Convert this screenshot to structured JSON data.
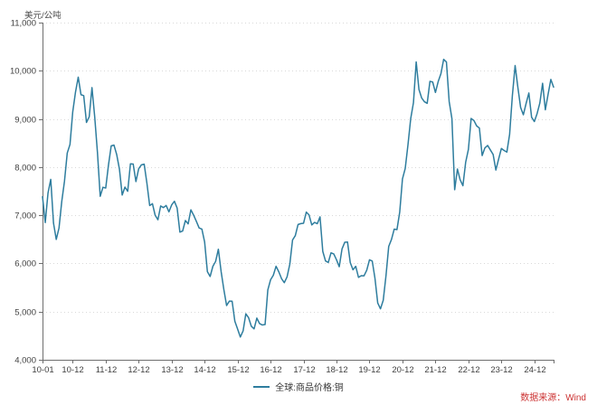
{
  "page": {
    "background": "#ffffff"
  },
  "header": {
    "unit_label": "美元/公吨"
  },
  "legend": {
    "series_label": "全球:商品价格:铜"
  },
  "footer": {
    "source_label": "数据来源：Wind"
  },
  "colors": {
    "line": "#2e7d9e",
    "grid": "#d9d9d9",
    "axis": "#6e6e6e",
    "tick_text": "#404040",
    "unit_text": "#4d4d4d",
    "legend_text": "#333333",
    "source_text": "#cc3333"
  },
  "chart_data": {
    "type": "line",
    "title": "",
    "ylabel": "美元/公吨",
    "xlabel": "",
    "ylim": [
      4000,
      11000
    ],
    "y_tick_step": 1000,
    "grid": "horizontal-dotted",
    "legend_position": "bottom-center",
    "x_start": "2010-01",
    "x_end": "2025-07",
    "x_frequency": "monthly",
    "y_ticks": [
      {
        "value": 4000,
        "label": "4,000"
      },
      {
        "value": 5000,
        "label": "5,000"
      },
      {
        "value": 6000,
        "label": "6,000"
      },
      {
        "value": 7000,
        "label": "7,000"
      },
      {
        "value": 8000,
        "label": "8,000"
      },
      {
        "value": 9000,
        "label": "9,000"
      },
      {
        "value": 10000,
        "label": "10,000"
      },
      {
        "value": 11000,
        "label": "11,000"
      }
    ],
    "x_ticks": [
      {
        "index": 0,
        "label": "10-01"
      },
      {
        "index": 11,
        "label": "10-12"
      },
      {
        "index": 23,
        "label": "11-12"
      },
      {
        "index": 35,
        "label": "12-12"
      },
      {
        "index": 47,
        "label": "13-12"
      },
      {
        "index": 59,
        "label": "14-12"
      },
      {
        "index": 71,
        "label": "15-12"
      },
      {
        "index": 83,
        "label": "16-12"
      },
      {
        "index": 95,
        "label": "17-12"
      },
      {
        "index": 107,
        "label": "18-12"
      },
      {
        "index": 119,
        "label": "19-12"
      },
      {
        "index": 131,
        "label": "20-12"
      },
      {
        "index": 143,
        "label": "21-12"
      },
      {
        "index": 155,
        "label": "22-12"
      },
      {
        "index": 167,
        "label": "23-12"
      },
      {
        "index": 179,
        "label": "24-12"
      },
      {
        "index": 186,
        "label": ""
      }
    ],
    "series": [
      {
        "name": "全球:商品价格:铜",
        "color": "#2e7d9e",
        "values": [
          7386,
          6848,
          7463,
          7745,
          6838,
          6499,
          6735,
          7284,
          7709,
          8292,
          8470,
          9147,
          9555,
          9867,
          9503,
          9483,
          8927,
          9045,
          9650,
          9041,
          8300,
          7394,
          7581,
          7565,
          8040,
          8441,
          8457,
          8260,
          7956,
          7420,
          7584,
          7498,
          8067,
          8063,
          7700,
          7966,
          8047,
          8061,
          7663,
          7203,
          7240,
          7000,
          6907,
          7193,
          7159,
          7203,
          7071,
          7214,
          7291,
          7149,
          6650,
          6674,
          6891,
          6821,
          7113,
          7001,
          6872,
          6737,
          6713,
          6446,
          5830,
          5729,
          5940,
          6042,
          6295,
          5833,
          5457,
          5127,
          5217,
          5216,
          4800,
          4639,
          4472,
          4599,
          4954,
          4873,
          4695,
          4642,
          4865,
          4751,
          4722,
          4731,
          5451,
          5660,
          5755,
          5941,
          5825,
          5684,
          5600,
          5720,
          5985,
          6486,
          6577,
          6808,
          6827,
          6834,
          7066,
          7007,
          6799,
          6852,
          6825,
          6966,
          6250,
          6051,
          6020,
          6220,
          6196,
          6075,
          5932,
          6300,
          6439,
          6445,
          6018,
          5868,
          5940,
          5710,
          5746,
          5742,
          5860,
          6075,
          6049,
          5688,
          5178,
          5058,
          5234,
          5742,
          6353,
          6497,
          6712,
          6703,
          7063,
          7755,
          7971,
          8460,
          9005,
          9336,
          10184,
          9612,
          9434,
          9357,
          9324,
          9780,
          9766,
          9550,
          9775,
          9940,
          10237,
          10183,
          9363,
          9007,
          7530,
          7959,
          7736,
          7614,
          8100,
          8367,
          9010,
          8967,
          8856,
          8810,
          8240,
          8398,
          8450,
          8355,
          8262,
          7939,
          8168,
          8386,
          8345,
          8311,
          8680,
          9483,
          10108,
          9656,
          9238,
          9087,
          9322,
          9538,
          9035,
          8946,
          9110,
          9330,
          9740,
          9190,
          9510,
          9820,
          9660
        ]
      }
    ]
  }
}
